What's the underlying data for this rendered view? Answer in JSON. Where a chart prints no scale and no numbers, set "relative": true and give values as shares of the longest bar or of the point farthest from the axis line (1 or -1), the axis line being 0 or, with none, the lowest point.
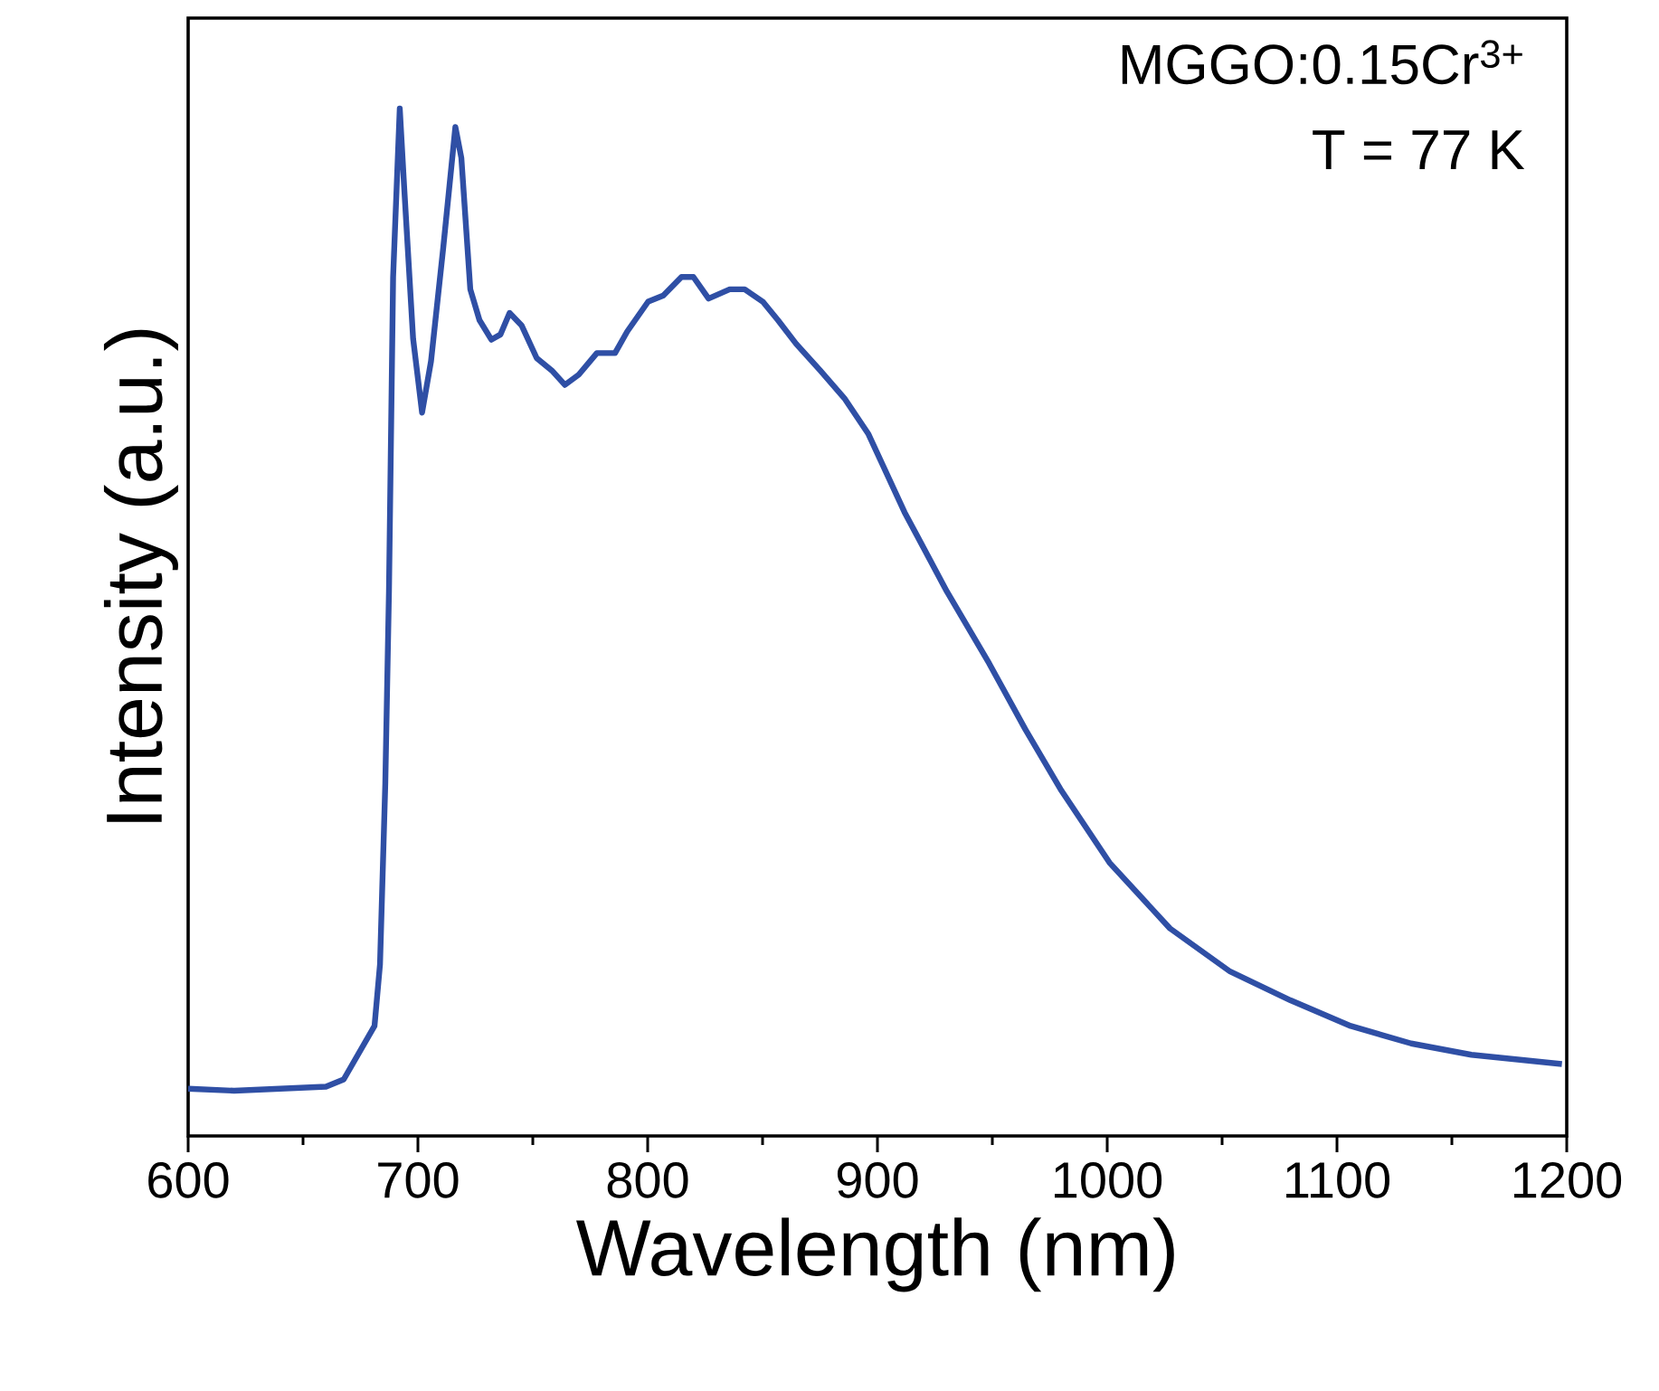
{
  "chart_data": {
    "type": "line",
    "relative": true,
    "xlabel": "Wavelength (nm)",
    "ylabel": "Intensity (a.u.)",
    "annotations": [
      "MGGO:0.15Cr$^{3+}$",
      "T = 77 K"
    ],
    "xlim": [
      600,
      1200
    ],
    "xticks": [
      600,
      {
        "value": 650,
        "label": null
      },
      700,
      {
        "value": 750,
        "label": null
      },
      800,
      {
        "value": 850,
        "label": null
      },
      900,
      {
        "value": 950,
        "label": null
      },
      1000,
      {
        "value": 1050,
        "label": null
      },
      1100,
      {
        "value": 1150,
        "label": null
      },
      1200
    ],
    "series": [
      {
        "color": "#2f4fa5",
        "x": [
          600,
          620,
          640,
          660,
          667.7,
          681.1,
          683.5,
          685.8,
          687.4,
          689.2,
          692.1,
          694,
          697.9,
          701.8,
          705.7,
          711,
          716.3,
          718.9,
          722.8,
          726.8,
          732,
          735.9,
          739.9,
          745.1,
          751.7,
          758.3,
          764,
          770,
          777.9,
          785.8,
          791.1,
          800.2,
          806.8,
          814.7,
          819.9,
          826.5,
          835.7,
          842.2,
          850.1,
          856.7,
          864.6,
          875.1,
          885.6,
          896.1,
          911.8,
          930.2,
          948.6,
          964.3,
          980.1,
          1001,
          1027.3,
          1053.5,
          1079.8,
          1106,
          1132.3,
          1158.5,
          1197.9
        ],
        "values": [
          0.046,
          0.044,
          0.046,
          0.048,
          0.055,
          0.107,
          0.167,
          0.343,
          0.53,
          0.836,
          1.0,
          0.924,
          0.776,
          0.704,
          0.754,
          0.864,
          0.982,
          0.952,
          0.824,
          0.794,
          0.775,
          0.78,
          0.801,
          0.789,
          0.757,
          0.745,
          0.731,
          0.741,
          0.762,
          0.762,
          0.783,
          0.812,
          0.818,
          0.836,
          0.836,
          0.815,
          0.824,
          0.824,
          0.812,
          0.794,
          0.771,
          0.745,
          0.718,
          0.683,
          0.607,
          0.53,
          0.46,
          0.396,
          0.336,
          0.266,
          0.202,
          0.16,
          0.132,
          0.107,
          0.09,
          0.079,
          0.07
        ]
      }
    ]
  }
}
